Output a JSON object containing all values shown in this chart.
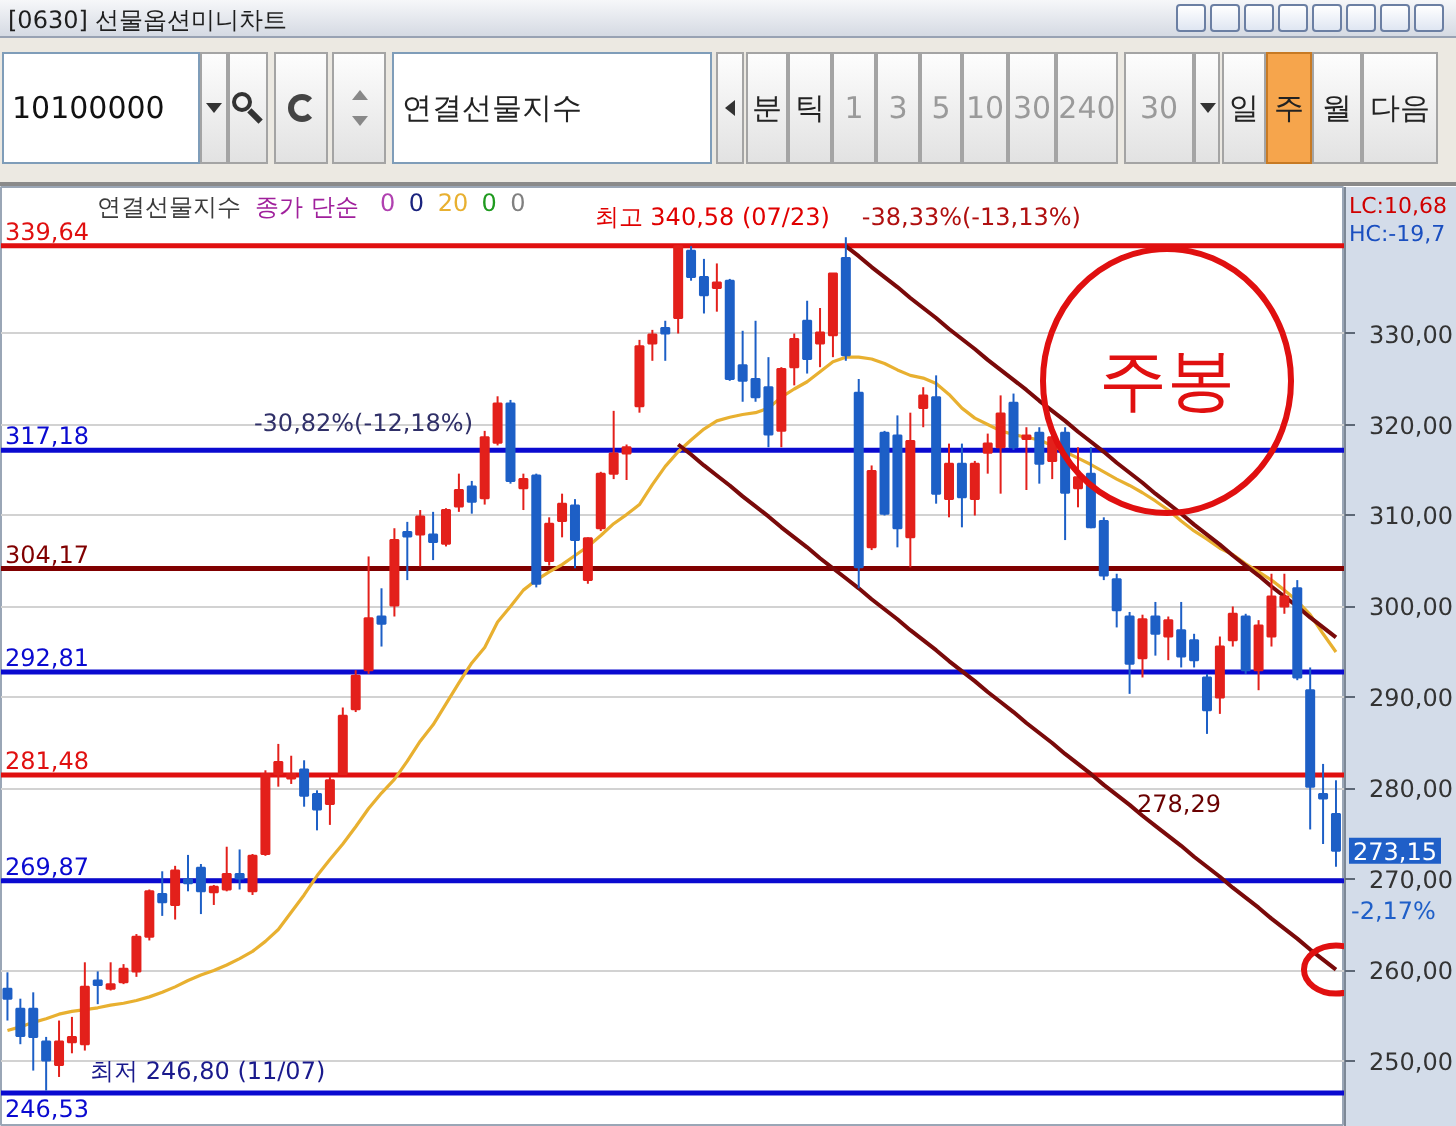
{
  "chart_data": {
    "type": "candlestick",
    "title": "[0630] 선물옵션미니차트",
    "categories": [
      null,
      null,
      null,
      null,
      null,
      null,
      null,
      null,
      null,
      null,
      null,
      null,
      null,
      null,
      null,
      null,
      null,
      null,
      null,
      null,
      null,
      null,
      null,
      null,
      null,
      null,
      null,
      null,
      null,
      null,
      null,
      null,
      null,
      null,
      null,
      null,
      null,
      null,
      null,
      null,
      null,
      null,
      null,
      null,
      null,
      null,
      null,
      null,
      null,
      null,
      null,
      null,
      null,
      null,
      null,
      null,
      null,
      null,
      null,
      null,
      null,
      null,
      null,
      null,
      null,
      null,
      null,
      null,
      null,
      null,
      null,
      null,
      null,
      null,
      null,
      null,
      null,
      null,
      null,
      null,
      null,
      null,
      null,
      null,
      null,
      null,
      null,
      null,
      null,
      null,
      null,
      null,
      null,
      null,
      null,
      null,
      null,
      null,
      null,
      null,
      null,
      null,
      null,
      null
    ],
    "ohlc": [
      [
        258.0,
        259.8,
        254.5,
        256.9
      ],
      [
        255.8,
        256.9,
        251.9,
        252.8
      ],
      [
        255.8,
        257.6,
        249.0,
        252.7
      ],
      [
        252.2,
        252.7,
        246.8,
        250.1
      ],
      [
        249.6,
        254.5,
        248.3,
        252.2
      ],
      [
        252.1,
        254.9,
        250.9,
        252.7
      ],
      [
        251.9,
        260.9,
        251.2,
        258.2
      ],
      [
        258.9,
        259.9,
        256.3,
        258.4
      ],
      [
        258.0,
        260.9,
        257.8,
        258.5
      ],
      [
        258.7,
        260.7,
        258.5,
        260.2
      ],
      [
        259.9,
        264.0,
        259.3,
        263.7
      ],
      [
        263.7,
        268.9,
        263.3,
        268.7
      ],
      [
        268.4,
        270.9,
        266.0,
        267.5
      ],
      [
        267.2,
        271.5,
        265.6,
        271.0
      ],
      [
        270.0,
        272.7,
        268.7,
        269.6
      ],
      [
        271.3,
        271.7,
        266.2,
        268.7
      ],
      [
        268.6,
        269.4,
        267.2,
        269.2
      ],
      [
        268.9,
        273.6,
        268.7,
        270.6
      ],
      [
        270.6,
        273.3,
        268.9,
        270.1
      ],
      [
        268.7,
        272.8,
        268.3,
        272.6
      ],
      [
        272.8,
        282.0,
        272.6,
        281.6
      ],
      [
        281.6,
        284.9,
        280.2,
        282.9
      ],
      [
        281.1,
        283.6,
        280.5,
        281.6
      ],
      [
        282.1,
        283.1,
        278.0,
        279.2
      ],
      [
        279.4,
        279.8,
        275.4,
        277.7
      ],
      [
        278.3,
        281.3,
        276.0,
        280.9
      ],
      [
        281.6,
        288.9,
        281.5,
        288.0
      ],
      [
        288.7,
        293.0,
        288.4,
        292.4
      ],
      [
        293.0,
        305.5,
        292.6,
        298.7
      ],
      [
        298.9,
        302.0,
        295.6,
        298.1
      ],
      [
        300.1,
        308.6,
        298.9,
        307.3
      ],
      [
        308.2,
        309.3,
        302.9,
        307.7
      ],
      [
        307.9,
        310.6,
        304.4,
        309.9
      ],
      [
        307.9,
        310.4,
        305.1,
        307.1
      ],
      [
        306.9,
        310.8,
        306.6,
        310.6
      ],
      [
        311.0,
        314.6,
        310.4,
        312.8
      ],
      [
        313.2,
        313.8,
        310.2,
        311.5
      ],
      [
        311.9,
        319.3,
        311.2,
        318.6
      ],
      [
        318.0,
        323.1,
        317.7,
        322.3
      ],
      [
        322.3,
        322.7,
        313.5,
        313.8
      ],
      [
        313.0,
        314.6,
        310.6,
        314.0
      ],
      [
        314.4,
        314.6,
        302.1,
        302.5
      ],
      [
        305.0,
        309.8,
        304.5,
        309.1
      ],
      [
        309.4,
        312.4,
        307.6,
        311.3
      ],
      [
        311.1,
        311.8,
        304.2,
        307.3
      ],
      [
        302.9,
        307.6,
        302.5,
        307.5
      ],
      [
        308.6,
        314.8,
        308.3,
        314.6
      ],
      [
        314.6,
        321.5,
        314.0,
        316.8
      ],
      [
        316.8,
        317.8,
        313.9,
        317.5
      ],
      [
        322.0,
        329.3,
        321.3,
        328.6
      ],
      [
        328.9,
        330.4,
        327.0,
        329.9
      ],
      [
        330.6,
        331.4,
        327.0,
        330.0
      ],
      [
        331.7,
        339.7,
        330.0,
        339.6
      ],
      [
        339.1,
        339.6,
        335.8,
        336.2
      ],
      [
        336.2,
        338.2,
        332.2,
        334.2
      ],
      [
        335.0,
        337.7,
        332.4,
        335.6
      ],
      [
        335.8,
        336.0,
        324.8,
        325.0
      ],
      [
        326.5,
        330.3,
        322.5,
        324.8
      ],
      [
        325.0,
        331.4,
        322.5,
        323.0
      ],
      [
        324.1,
        327.4,
        317.5,
        318.9
      ],
      [
        319.3,
        326.3,
        317.5,
        326.1
      ],
      [
        326.3,
        330.0,
        324.3,
        329.4
      ],
      [
        331.4,
        333.6,
        325.6,
        327.2
      ],
      [
        328.9,
        332.8,
        326.3,
        330.1
      ],
      [
        329.8,
        336.6,
        327.4,
        336.6
      ],
      [
        338.3,
        340.58,
        327.0,
        327.6
      ],
      [
        323.5,
        325.0,
        302.0,
        304.3
      ],
      [
        306.5,
        315.5,
        306.2,
        314.9
      ],
      [
        319.1,
        319.3,
        310.0,
        310.2
      ],
      [
        318.8,
        321.0,
        306.5,
        308.6
      ],
      [
        307.6,
        321.3,
        304.3,
        318.2
      ],
      [
        321.8,
        324.1,
        319.7,
        323.2
      ],
      [
        323.0,
        325.4,
        311.3,
        312.4
      ],
      [
        311.8,
        317.9,
        309.8,
        315.7
      ],
      [
        315.7,
        317.9,
        308.7,
        312.0
      ],
      [
        311.8,
        316.0,
        310.0,
        315.7
      ],
      [
        316.9,
        319.0,
        314.6,
        317.9
      ],
      [
        317.5,
        323.2,
        312.4,
        321.2
      ],
      [
        322.4,
        323.4,
        317.2,
        317.5
      ],
      [
        318.4,
        319.7,
        312.8,
        318.8
      ],
      [
        319.1,
        319.7,
        313.5,
        315.7
      ],
      [
        316.0,
        319.6,
        314.0,
        318.6
      ],
      [
        319.1,
        319.7,
        307.3,
        312.5
      ],
      [
        313.0,
        317.5,
        310.9,
        314.2
      ],
      [
        314.6,
        317.5,
        308.6,
        308.7
      ],
      [
        309.4,
        309.8,
        302.9,
        303.4
      ],
      [
        303.0,
        303.6,
        297.7,
        299.6
      ],
      [
        298.9,
        299.4,
        290.4,
        293.7
      ],
      [
        294.3,
        299.1,
        292.2,
        298.6
      ],
      [
        298.9,
        300.5,
        294.6,
        297.0
      ],
      [
        296.7,
        298.9,
        294.1,
        298.5
      ],
      [
        297.4,
        300.5,
        293.3,
        294.5
      ],
      [
        296.3,
        297.0,
        293.3,
        294.1
      ],
      [
        292.2,
        292.6,
        286.0,
        288.6
      ],
      [
        290.0,
        296.7,
        288.2,
        295.6
      ],
      [
        296.3,
        300.0,
        295.6,
        299.2
      ],
      [
        298.9,
        299.2,
        292.6,
        293.0
      ],
      [
        293.0,
        298.5,
        290.8,
        297.9
      ],
      [
        296.7,
        303.6,
        295.6,
        301.1
      ],
      [
        300.0,
        303.6,
        299.2,
        301.1
      ],
      [
        302.0,
        302.9,
        291.9,
        292.2
      ],
      [
        290.8,
        293.3,
        275.5,
        280.2
      ],
      [
        279.4,
        282.7,
        273.9,
        278.9
      ],
      [
        277.2,
        280.9,
        271.4,
        273.15
      ]
    ],
    "colors": [
      "#1d5fc6",
      "#1d5fc6",
      "#1d5fc6",
      "#1d5fc6",
      "#e3201b",
      "#e3201b",
      "#e3201b",
      "#1d5fc6",
      "#e3201b",
      "#e3201b",
      "#e3201b",
      "#e3201b",
      "#1d5fc6",
      "#e3201b",
      "#1d5fc6",
      "#1d5fc6",
      "#e3201b",
      "#e3201b",
      "#1d5fc6",
      "#e3201b",
      "#e3201b",
      "#e3201b",
      "#e3201b",
      "#1d5fc6",
      "#1d5fc6",
      "#e3201b",
      "#e3201b",
      "#e3201b",
      "#e3201b",
      "#1d5fc6",
      "#e3201b",
      "#1d5fc6",
      "#e3201b",
      "#1d5fc6",
      "#e3201b",
      "#e3201b",
      "#1d5fc6",
      "#e3201b",
      "#e3201b",
      "#1d5fc6",
      "#e3201b",
      "#1d5fc6",
      "#e3201b",
      "#e3201b",
      "#1d5fc6",
      "#e3201b",
      "#e3201b",
      "#e3201b",
      "#e3201b",
      "#e3201b",
      "#e3201b",
      "#1d5fc6",
      "#e3201b",
      "#1d5fc6",
      "#1d5fc6",
      "#e3201b",
      "#1d5fc6",
      "#1d5fc6",
      "#1d5fc6",
      "#1d5fc6",
      "#e3201b",
      "#e3201b",
      "#1d5fc6",
      "#e3201b",
      "#e3201b",
      "#1d5fc6",
      "#1d5fc6",
      "#e3201b",
      "#1d5fc6",
      "#1d5fc6",
      "#e3201b",
      "#e3201b",
      "#1d5fc6",
      "#e3201b",
      "#1d5fc6",
      "#e3201b",
      "#e3201b",
      "#e3201b",
      "#1d5fc6",
      "#e3201b",
      "#1d5fc6",
      "#e3201b",
      "#1d5fc6",
      "#e3201b",
      "#1d5fc6",
      "#1d5fc6",
      "#1d5fc6",
      "#1d5fc6",
      "#e3201b",
      "#1d5fc6",
      "#e3201b",
      "#1d5fc6",
      "#1d5fc6",
      "#1d5fc6",
      "#e3201b",
      "#e3201b",
      "#1d5fc6",
      "#e3201b",
      "#e3201b",
      "#e3201b",
      "#1d5fc6",
      "#1d5fc6",
      "#1d5fc6",
      "#1d5fc6"
    ],
    "series": [
      {
        "type": "line",
        "name": "20",
        "color": "#e8b030",
        "values": [
          253.4,
          253.8,
          254.3,
          254.7,
          255.2,
          255.5,
          255.7,
          255.9,
          256.2,
          256.4,
          256.7,
          257.1,
          257.6,
          258.2,
          258.9,
          259.5,
          260.0,
          260.6,
          261.3,
          262.1,
          263.2,
          264.5,
          266.4,
          268.3,
          270.4,
          272.2,
          273.9,
          275.8,
          277.8,
          279.5,
          281.0,
          283.0,
          285.2,
          287.0,
          289.3,
          291.6,
          293.8,
          295.5,
          298.3,
          300.0,
          301.8,
          302.9,
          303.8,
          304.6,
          305.6,
          306.6,
          307.8,
          309.1,
          310.1,
          311.2,
          313.4,
          315.4,
          317.0,
          318.3,
          319.5,
          320.4,
          320.8,
          321.1,
          321.3,
          321.8,
          323.0,
          323.9,
          324.7,
          325.8,
          326.9,
          327.4,
          327.4,
          327.2,
          326.7,
          326.0,
          325.4,
          325.1,
          324.5,
          323.3,
          321.8,
          320.7,
          320.0,
          319.3,
          318.9,
          318.6,
          318.3,
          317.7,
          317.0,
          316.3,
          315.6,
          314.8,
          314.0,
          313.3,
          312.5,
          311.6,
          310.6,
          309.4,
          308.3,
          307.4,
          306.4,
          305.7,
          304.7,
          303.8,
          302.9,
          301.8,
          300.6,
          299.1,
          297.0,
          295.0
        ]
      },
      {
        "type": "line",
        "color": "#7a0a0a",
        "values": [
          null,
          null,
          null,
          null,
          null,
          null,
          null,
          null,
          null,
          null,
          null,
          null,
          null,
          null,
          null,
          null,
          null,
          null,
          null,
          null,
          null,
          null,
          null,
          null,
          null,
          null,
          null,
          null,
          null,
          null,
          null,
          null,
          null,
          null,
          null,
          null,
          null,
          null,
          null,
          null,
          null,
          null,
          null,
          null,
          null,
          null,
          null,
          null,
          null,
          null,
          null,
          null,
          null,
          null,
          null,
          null,
          null,
          null,
          null,
          null,
          null,
          null,
          null,
          null,
          null,
          339.6,
          338.5,
          337.3,
          336.2,
          335.1,
          333.9,
          332.8,
          331.7,
          330.5,
          329.4,
          328.3,
          327.1,
          326.0,
          324.9,
          323.8,
          322.6,
          321.5,
          320.4,
          319.2,
          318.1,
          317.0,
          315.8,
          314.7,
          313.6,
          312.4,
          311.3,
          310.2,
          309.0,
          307.9,
          306.8,
          305.6,
          304.5,
          303.4,
          302.2,
          301.1,
          300.0,
          298.8,
          297.7,
          296.6
        ]
      },
      {
        "type": "line",
        "color": "#7a0a0a",
        "values": [
          null,
          null,
          null,
          null,
          null,
          null,
          null,
          null,
          null,
          null,
          null,
          null,
          null,
          null,
          null,
          null,
          null,
          null,
          null,
          null,
          null,
          null,
          null,
          null,
          null,
          null,
          null,
          null,
          null,
          null,
          null,
          null,
          null,
          null,
          null,
          null,
          null,
          null,
          null,
          null,
          null,
          null,
          null,
          null,
          null,
          null,
          null,
          null,
          null,
          null,
          null,
          null,
          317.8,
          316.7,
          315.5,
          314.4,
          313.3,
          312.1,
          311.0,
          309.9,
          308.7,
          307.6,
          306.5,
          305.3,
          304.2,
          303.1,
          302.0,
          300.8,
          299.7,
          298.6,
          297.4,
          296.3,
          295.2,
          294.0,
          292.9,
          291.8,
          290.6,
          289.5,
          288.4,
          287.2,
          286.1,
          285.0,
          283.8,
          282.7,
          281.6,
          280.4,
          279.3,
          278.2,
          277.0,
          275.9,
          274.8,
          273.7,
          272.5,
          271.4,
          270.3,
          269.1,
          268.0,
          266.9,
          265.7,
          264.6,
          263.5,
          262.3,
          261.2,
          260.1
        ]
      }
    ],
    "ylim": [
      242.8,
      346.1
    ],
    "yticks": [
      {
        "value": 250,
        "label": "250,00"
      },
      {
        "value": 260,
        "label": "260,00"
      },
      {
        "value": 270,
        "label": "270,00"
      },
      {
        "value": 280,
        "label": "280,00"
      },
      {
        "value": 290,
        "label": "290,00"
      },
      {
        "value": 300,
        "label": "300,00"
      },
      {
        "value": 310,
        "label": "310,00"
      },
      {
        "value": 320,
        "label": "320,00"
      },
      {
        "value": 330,
        "label": "330,00"
      }
    ],
    "grid": "y",
    "legend": "top left",
    "ref_lines": [
      {
        "axis": "y",
        "value": 339.64,
        "label": "339,64",
        "color": "#e01010"
      },
      {
        "axis": "y",
        "value": 317.18,
        "label": "317,18",
        "color": "#0a0ad0"
      },
      {
        "axis": "y",
        "value": 304.17,
        "label": "304,17",
        "color": "#800000"
      },
      {
        "axis": "y",
        "value": 292.81,
        "label": "292,81",
        "color": "#0a0ad0"
      },
      {
        "axis": "y",
        "value": 281.48,
        "label": "281,48",
        "color": "#e01010"
      },
      {
        "axis": "y",
        "value": 269.87,
        "label": "269,87",
        "color": "#0a0ad0"
      },
      {
        "axis": "y",
        "value": 246.53,
        "label": "246,53",
        "color": "#0a0ad0"
      }
    ],
    "annotations": [
      "연결선물지수",
      "종가 단순",
      "0",
      "0",
      "0",
      "0",
      {
        "text": "최고 340,58 (07/23)",
        "y": 340.58
      },
      "-38,33%(-13,13%)",
      {
        "text": "최저 246,80 (11/07)",
        "y": 246.8
      },
      "-30,82%(-12,18%)",
      "278,29",
      "LC:10,68",
      "HC:-19,7",
      "273,15",
      "-2,17%",
      "주봉",
      "10100000",
      "연결선물지수",
      "분",
      "틱",
      "1",
      "3",
      "5",
      "10",
      "30",
      "240",
      "30",
      "일",
      "주",
      "월",
      "다음"
    ]
  }
}
